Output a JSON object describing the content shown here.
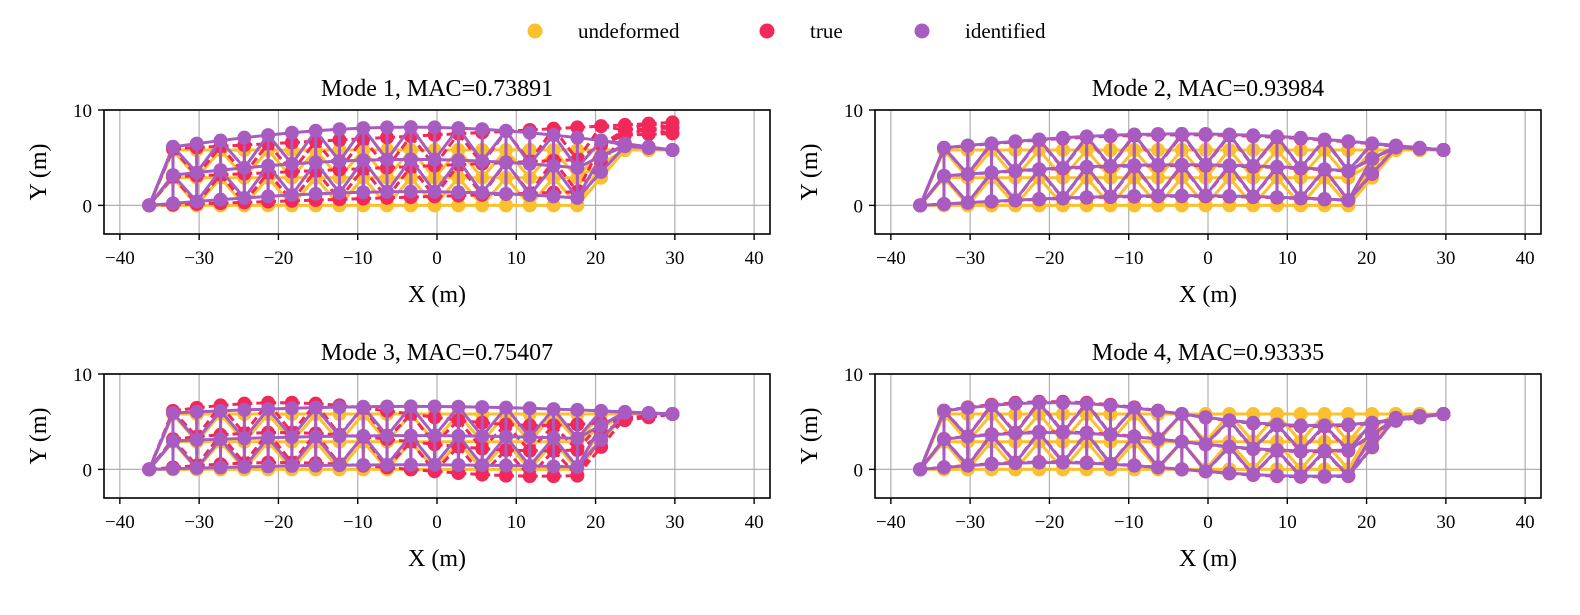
{
  "legend": [
    {
      "label": "undeformed",
      "color": "#FBC02D"
    },
    {
      "label": "true",
      "color": "#F2275A"
    },
    {
      "label": "identified",
      "color": "#A85BC0"
    }
  ],
  "structure": {
    "chords": 3,
    "panels": 22,
    "x_start": -36.3,
    "x_step": 3.0,
    "y_levels": [
      0,
      2.9,
      5.8
    ],
    "incline_start_index": 19
  },
  "chart_data": [
    {
      "type": "scatter",
      "title": "Mode 1, MAC=0.73891",
      "xlabel": "X (m)",
      "ylabel": "Y (m)",
      "xlim": [
        -42,
        42
      ],
      "ylim": [
        -3,
        10
      ],
      "xticks": [
        -40,
        -30,
        -20,
        -10,
        0,
        10,
        20,
        30,
        40
      ],
      "yticks": [
        0,
        10
      ],
      "grid": true,
      "series": [
        {
          "name": "undeformed",
          "amplitude": 0,
          "shape": "none"
        },
        {
          "name": "true",
          "amplitude": 2.9,
          "shape": "linear"
        },
        {
          "name": "identified",
          "amplitude": 2.4,
          "shape": "sine-half"
        }
      ]
    },
    {
      "type": "scatter",
      "title": "Mode 2, MAC=0.93984",
      "xlabel": "X (m)",
      "ylabel": "Y (m)",
      "xlim": [
        -42,
        42
      ],
      "ylim": [
        -3,
        10
      ],
      "xticks": [
        -40,
        -30,
        -20,
        -10,
        0,
        10,
        20,
        30,
        40
      ],
      "yticks": [
        0,
        10
      ],
      "grid": true,
      "series": [
        {
          "name": "undeformed",
          "amplitude": 0,
          "shape": "none"
        },
        {
          "name": "true",
          "amplitude": 1.6,
          "shape": "sine-half"
        },
        {
          "name": "identified",
          "amplitude": 1.7,
          "shape": "sine-half"
        }
      ]
    },
    {
      "type": "scatter",
      "title": "Mode 3, MAC=0.75407",
      "xlabel": "X (m)",
      "ylabel": "Y (m)",
      "xlim": [
        -42,
        42
      ],
      "ylim": [
        -3,
        10
      ],
      "xticks": [
        -40,
        -30,
        -20,
        -10,
        0,
        10,
        20,
        30,
        40
      ],
      "yticks": [
        0,
        10
      ],
      "grid": true,
      "series": [
        {
          "name": "undeformed",
          "amplitude": 0,
          "shape": "none"
        },
        {
          "name": "true",
          "amplitude": 1.2,
          "shape": "sine-full"
        },
        {
          "name": "identified",
          "amplitude": 0.8,
          "shape": "sine-half"
        }
      ]
    },
    {
      "type": "scatter",
      "title": "Mode 4, MAC=0.93335",
      "xlabel": "X (m)",
      "ylabel": "Y (m)",
      "xlim": [
        -42,
        42
      ],
      "ylim": [
        -3,
        10
      ],
      "xticks": [
        -40,
        -30,
        -20,
        -10,
        0,
        10,
        20,
        30,
        40
      ],
      "yticks": [
        0,
        10
      ],
      "grid": true,
      "series": [
        {
          "name": "undeformed",
          "amplitude": 0,
          "shape": "none"
        },
        {
          "name": "true",
          "amplitude": 1.3,
          "shape": "sine-full"
        },
        {
          "name": "identified",
          "amplitude": 1.2,
          "shape": "sine-full"
        }
      ]
    }
  ]
}
